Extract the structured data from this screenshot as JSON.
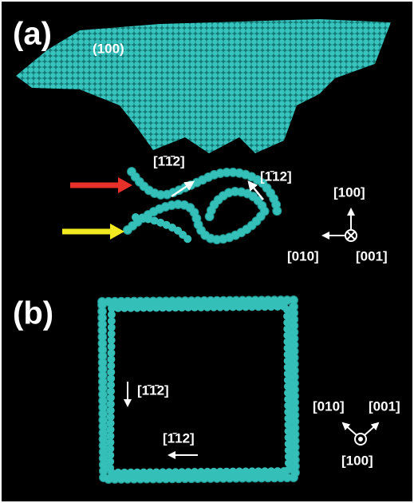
{
  "panel_a": {
    "label": "(a)",
    "plane": "(100)",
    "dir_1": "[1̄1̄2]",
    "dir_2": "[1̄12]",
    "axes": {
      "up": "[100]",
      "left": "[010]",
      "into": "[001]"
    }
  },
  "panel_b": {
    "label": "(b)",
    "dir_1": "[1̄1̄2]",
    "dir_2": "[1̄12]",
    "axes": {
      "left": "[010]",
      "right": "[001]",
      "out": "[100]"
    }
  }
}
